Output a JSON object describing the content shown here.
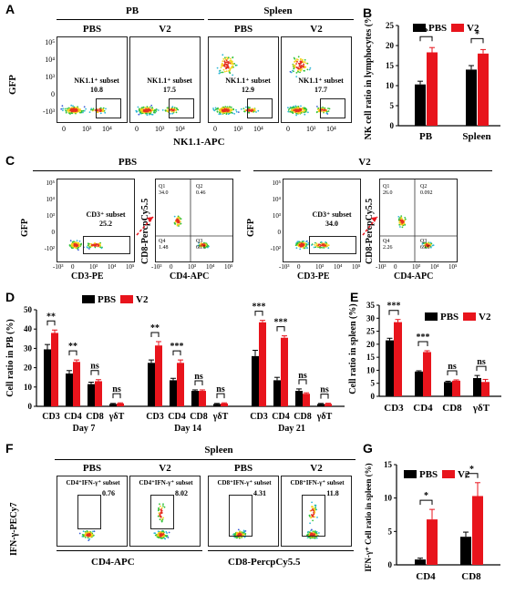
{
  "panels": {
    "A": {
      "letter": "A",
      "group_pb": "PB",
      "group_spleen": "Spleen",
      "plots": [
        {
          "title": "PBS",
          "gate_label": "NK1.1⁺ subset",
          "value": "10.8"
        },
        {
          "title": "V2",
          "gate_label": "NK1.1⁺ subset",
          "value": "17.5"
        },
        {
          "title": "PBS",
          "gate_label": "NK1.1⁺ subset",
          "value": "12.9"
        },
        {
          "title": "V2",
          "gate_label": "NK1.1⁺ subset",
          "value": "17.7"
        }
      ],
      "ylabel": "GFP",
      "xlabel": "NK1.1-APC",
      "yticks": [
        "10⁵",
        "10⁴",
        "10³",
        "0",
        "-10³"
      ],
      "xticks": [
        "0",
        "10³",
        "10⁴"
      ]
    },
    "B": {
      "letter": "B",
      "ylabel": "NK cell ratio in lymphocytes (%)",
      "legend": [
        "PBS",
        "V2"
      ],
      "sig": [
        "*",
        "*"
      ]
    },
    "C": {
      "letter": "C",
      "group_pbs": "PBS",
      "group_v2": "V2",
      "ylabel_gfp": "GFP",
      "xlabel_cd3": "CD3-PE",
      "ylabel_cd8": "CD8-PercpCy5.5",
      "xlabel_cd4": "CD4-APC",
      "pbs_gate": "CD3⁺ subset",
      "pbs_value": "25.2",
      "v2_gate": "CD3⁺ subset",
      "v2_value": "34.0",
      "quad_pbs": [
        "Q1",
        "34.0",
        "Q2",
        "0.46",
        "Q4",
        "1.48",
        "Q3",
        "60.1"
      ],
      "quad_v2": [
        "Q1",
        "26.0",
        "Q2",
        "0.092",
        "Q4",
        "2.26",
        "Q3",
        "69.6"
      ],
      "yticks": [
        "10⁵",
        "10⁴",
        "10³",
        "0",
        "-10²"
      ],
      "xticks": [
        "-10³",
        "0",
        "10³",
        "10⁴",
        "10⁵"
      ]
    },
    "D": {
      "letter": "D",
      "ylabel": "Cell ratio in PB (%)",
      "legend": [
        "PBS",
        "V2"
      ],
      "days": [
        "Day 7",
        "Day 14",
        "Day 21"
      ],
      "cats": [
        "CD3",
        "CD4",
        "CD8",
        "γδT"
      ],
      "sig_d7": [
        "**",
        "**",
        "ns",
        "ns"
      ],
      "sig_d14": [
        "**",
        "***",
        "ns",
        "ns"
      ],
      "sig_d21": [
        "***",
        "***",
        "ns",
        "ns"
      ]
    },
    "E": {
      "letter": "E",
      "ylabel": "Cell ratio in spleen (%)",
      "legend": [
        "PBS",
        "V2"
      ],
      "sig": [
        "***",
        "***",
        "ns",
        "ns"
      ]
    },
    "F": {
      "letter": "F",
      "group": "Spleen",
      "ylabel": "IFN-γ-PECy7",
      "xlabel_left": "CD4-APC",
      "xlabel_right": "CD8-PercpCy5.5",
      "plots": [
        {
          "title": "PBS",
          "gate_label": "CD4⁺IFN-γ⁺ subset",
          "value": "0.76"
        },
        {
          "title": "V2",
          "gate_label": "CD4⁺IFN-γ⁺ subset",
          "value": "8.02"
        },
        {
          "title": "PBS",
          "gate_label": "CD8⁺IFN-γ⁺ subset",
          "value": "4.31"
        },
        {
          "title": "V2",
          "gate_label": "CD8⁺IFN-γ⁺ subset",
          "value": "11.8"
        }
      ]
    },
    "G": {
      "letter": "G",
      "ylabel": "IFN-γ⁺ Cell ratio in spleen (%)",
      "legend": [
        "PBS",
        "V2"
      ],
      "sig": [
        "*",
        "*"
      ]
    }
  },
  "colors": {
    "pbs": "#000000",
    "v2": "#e8141c"
  },
  "chart_data": [
    {
      "id": "B",
      "type": "bar",
      "categories": [
        "PB",
        "Spleen"
      ],
      "series": [
        {
          "name": "PBS",
          "values": [
            10.3,
            14.0
          ],
          "err": [
            0.8,
            1.0
          ]
        },
        {
          "name": "V2",
          "values": [
            18.3,
            18.0
          ],
          "err": [
            1.2,
            1.0
          ]
        }
      ],
      "ylim": [
        0,
        25
      ],
      "yticks": [
        0,
        5,
        10,
        15,
        20,
        25
      ],
      "ylabel": "NK cell ratio in lymphocytes (%)"
    },
    {
      "id": "D",
      "type": "bar",
      "groups": [
        "Day 7",
        "Day 14",
        "Day 21"
      ],
      "categories": [
        "CD3",
        "CD4",
        "CD8",
        "γδT"
      ],
      "series": [
        {
          "name": "PBS",
          "values": [
            [
              29.5,
              17.0,
              11.5,
              1.2
            ],
            [
              22.5,
              13.5,
              8.0,
              1.2
            ],
            [
              26.0,
              13.5,
              8.0,
              1.2
            ]
          ],
          "err": [
            [
              2.5,
              1.5,
              1.0,
              0.3
            ],
            [
              1.5,
              1.0,
              0.5,
              0.3
            ],
            [
              3.0,
              1.5,
              1.0,
              0.3
            ]
          ]
        },
        {
          "name": "V2",
          "values": [
            [
              38.0,
              23.0,
              13.0,
              1.5
            ],
            [
              31.5,
              22.5,
              8.0,
              1.5
            ],
            [
              43.5,
              35.5,
              6.5,
              1.3
            ]
          ],
          "err": [
            [
              1.5,
              1.0,
              0.8,
              0.3
            ],
            [
              2.0,
              1.5,
              0.5,
              0.3
            ],
            [
              1.0,
              1.0,
              0.5,
              0.3
            ]
          ]
        }
      ],
      "ylim": [
        0,
        50
      ],
      "yticks": [
        0,
        10,
        20,
        30,
        40,
        50
      ],
      "ylabel": "Cell ratio in PB (%)"
    },
    {
      "id": "E",
      "type": "bar",
      "categories": [
        "CD3",
        "CD4",
        "CD8",
        "γδT"
      ],
      "series": [
        {
          "name": "PBS",
          "values": [
            21.5,
            9.5,
            5.5,
            7.0
          ],
          "err": [
            0.8,
            0.3,
            0.3,
            1.0
          ]
        },
        {
          "name": "V2",
          "values": [
            28.5,
            17.0,
            6.0,
            5.5
          ],
          "err": [
            1.0,
            0.5,
            0.3,
            1.0
          ]
        }
      ],
      "ylim": [
        0,
        35
      ],
      "yticks": [
        0,
        5,
        10,
        15,
        20,
        25,
        30,
        35
      ],
      "ylabel": "Cell ratio in spleen (%)"
    },
    {
      "id": "G",
      "type": "bar",
      "categories": [
        "CD4",
        "CD8"
      ],
      "series": [
        {
          "name": "PBS",
          "values": [
            0.8,
            4.2
          ],
          "err": [
            0.2,
            0.7
          ]
        },
        {
          "name": "V2",
          "values": [
            6.8,
            10.3
          ],
          "err": [
            1.5,
            2.0
          ]
        }
      ],
      "ylim": [
        0,
        15
      ],
      "yticks": [
        0,
        5,
        10,
        15
      ],
      "ylabel": "IFN-γ⁺ Cell ratio in spleen (%)"
    }
  ]
}
